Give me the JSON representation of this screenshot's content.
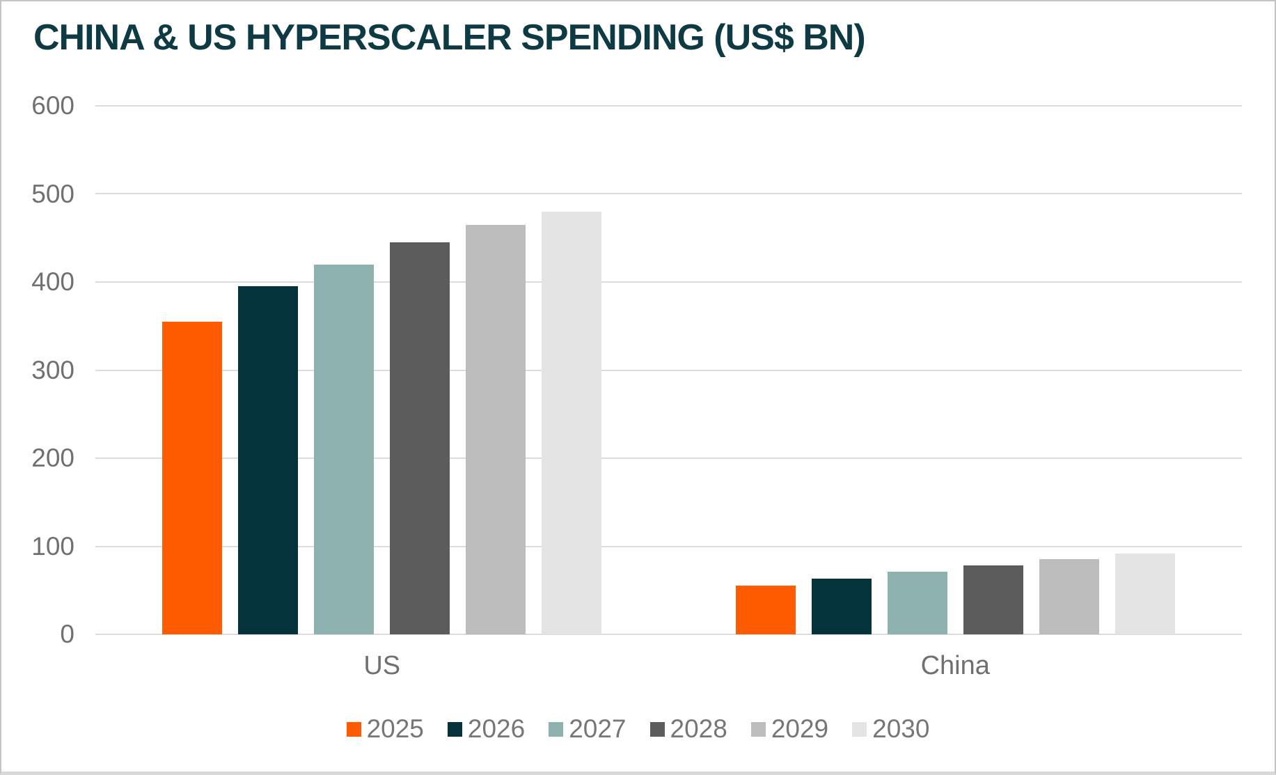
{
  "title": "CHINA & US HYPERSCALER SPENDING (US$ BN)",
  "chart_data": {
    "type": "bar",
    "categories": [
      "US",
      "China"
    ],
    "series": [
      {
        "name": "2025",
        "color": "#ff5c01",
        "values": [
          355,
          55
        ]
      },
      {
        "name": "2026",
        "color": "#05333c",
        "values": [
          395,
          63
        ]
      },
      {
        "name": "2027",
        "color": "#8eb2b0",
        "values": [
          420,
          71
        ]
      },
      {
        "name": "2028",
        "color": "#5c5c5c",
        "values": [
          445,
          78
        ]
      },
      {
        "name": "2029",
        "color": "#bdbdbd",
        "values": [
          465,
          85
        ]
      },
      {
        "name": "2030",
        "color": "#e4e4e4",
        "values": [
          480,
          92
        ]
      }
    ],
    "title": "CHINA & US HYPERSCALER SPENDING (US$ BN)",
    "xlabel": "",
    "ylabel": "",
    "ylim": [
      0,
      600
    ],
    "yticks": [
      600,
      500,
      400,
      300,
      200,
      100,
      0
    ],
    "grid": true,
    "legend_position": "bottom"
  },
  "colors": {
    "title_text": "#0e3a43",
    "axis_text": "#707070",
    "legend_text": "#767676",
    "gridline": "#dcdcdc",
    "background": "#ffffff",
    "frame_border": "#c4c4c4"
  }
}
